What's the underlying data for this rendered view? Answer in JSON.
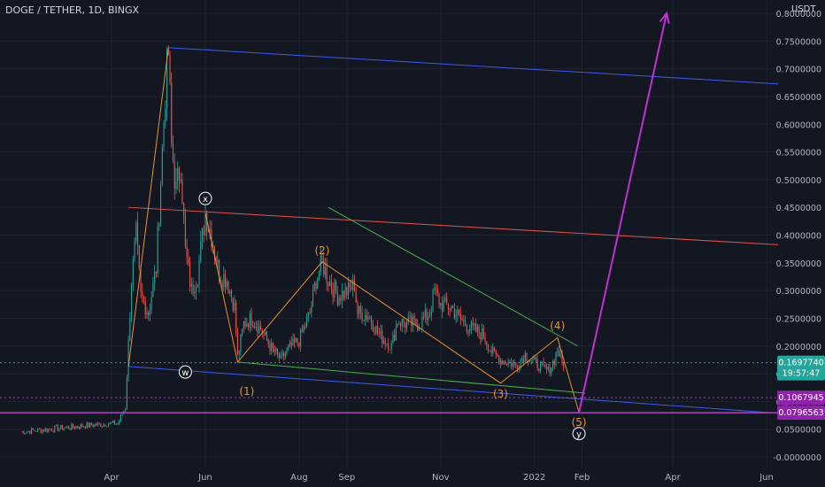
{
  "header": {
    "symbol_title": "DOGE / TETHER, 1D, BINGX",
    "currency": "USDT"
  },
  "chart_data": {
    "type": "candlestick",
    "title": "DOGE / TETHER, 1D, BINGX",
    "y_unit": "USDT",
    "ylim": [
      -0.02,
      0.82
    ],
    "grid": true,
    "y_ticks": [
      "-0.0000000",
      "0.0500000",
      "0.1000000",
      "0.1500000",
      "0.2000000",
      "0.2500000",
      "0.3000000",
      "0.3500000",
      "0.4000000",
      "0.4500000",
      "0.5000000",
      "0.5500000",
      "0.6000000",
      "0.6500000",
      "0.7000000",
      "0.7500000",
      "0.8000000"
    ],
    "y_tick_values": [
      0.0,
      0.05,
      0.1,
      0.15,
      0.2,
      0.25,
      0.3,
      0.35,
      0.4,
      0.45,
      0.5,
      0.55,
      0.6,
      0.65,
      0.7,
      0.75,
      0.8
    ],
    "x_ticks": [
      "Apr",
      "Jun",
      "Aug",
      "Sep",
      "Nov",
      "2022",
      "Feb",
      "Apr",
      "Jun"
    ],
    "x_tick_dates": [
      "2021-04-01",
      "2021-06-01",
      "2021-08-01",
      "2021-09-01",
      "2021-11-01",
      "2022-01-01",
      "2022-02-01",
      "2022-04-01",
      "2022-06-01"
    ],
    "price_path": [
      [
        "2021-02-01",
        0.045
      ],
      [
        "2021-02-20",
        0.05
      ],
      [
        "2021-03-10",
        0.055
      ],
      [
        "2021-03-31",
        0.06
      ],
      [
        "2021-04-05",
        0.06
      ],
      [
        "2021-04-10",
        0.09
      ],
      [
        "2021-04-14",
        0.32
      ],
      [
        "2021-04-17",
        0.4
      ],
      [
        "2021-04-20",
        0.29
      ],
      [
        "2021-04-25",
        0.26
      ],
      [
        "2021-04-30",
        0.34
      ],
      [
        "2021-05-03",
        0.5
      ],
      [
        "2021-05-06",
        0.66
      ],
      [
        "2021-05-08",
        0.73
      ],
      [
        "2021-05-10",
        0.56
      ],
      [
        "2021-05-13",
        0.48
      ],
      [
        "2021-05-16",
        0.53
      ],
      [
        "2021-05-19",
        0.37
      ],
      [
        "2021-05-23",
        0.3
      ],
      [
        "2021-05-27",
        0.33
      ],
      [
        "2021-06-01",
        0.44
      ],
      [
        "2021-06-05",
        0.4
      ],
      [
        "2021-06-10",
        0.33
      ],
      [
        "2021-06-15",
        0.32
      ],
      [
        "2021-06-20",
        0.27
      ],
      [
        "2021-06-22",
        0.18
      ],
      [
        "2021-06-26",
        0.24
      ],
      [
        "2021-07-01",
        0.25
      ],
      [
        "2021-07-07",
        0.23
      ],
      [
        "2021-07-13",
        0.2
      ],
      [
        "2021-07-20",
        0.175
      ],
      [
        "2021-07-25",
        0.195
      ],
      [
        "2021-08-01",
        0.21
      ],
      [
        "2021-08-08",
        0.26
      ],
      [
        "2021-08-12",
        0.32
      ],
      [
        "2021-08-16",
        0.35
      ],
      [
        "2021-08-20",
        0.32
      ],
      [
        "2021-08-26",
        0.29
      ],
      [
        "2021-09-02",
        0.3
      ],
      [
        "2021-09-06",
        0.31
      ],
      [
        "2021-09-08",
        0.26
      ],
      [
        "2021-09-15",
        0.255
      ],
      [
        "2021-09-22",
        0.22
      ],
      [
        "2021-09-30",
        0.2
      ],
      [
        "2021-10-04",
        0.245
      ],
      [
        "2021-10-10",
        0.24
      ],
      [
        "2021-10-18",
        0.24
      ],
      [
        "2021-10-25",
        0.26
      ],
      [
        "2021-10-28",
        0.3
      ],
      [
        "2021-11-01",
        0.275
      ],
      [
        "2021-11-08",
        0.27
      ],
      [
        "2021-11-15",
        0.245
      ],
      [
        "2021-11-22",
        0.23
      ],
      [
        "2021-11-29",
        0.22
      ],
      [
        "2021-12-04",
        0.19
      ],
      [
        "2021-12-10",
        0.175
      ],
      [
        "2021-12-20",
        0.165
      ],
      [
        "2021-12-26",
        0.185
      ],
      [
        "2022-01-01",
        0.17
      ],
      [
        "2022-01-10",
        0.155
      ],
      [
        "2022-01-14",
        0.175
      ],
      [
        "2022-01-16",
        0.195
      ],
      [
        "2022-01-20",
        0.16
      ]
    ],
    "overlays": {
      "lines": [
        {
          "name": "upper-blue-channel",
          "color": "#3d5ce8",
          "from": [
            "2021-05-08",
            0.738
          ],
          "to": [
            "2022-06-12",
            0.672
          ]
        },
        {
          "name": "lower-blue-channel",
          "color": "#3d5ce8",
          "from": [
            "2021-04-12",
            0.163
          ],
          "to": [
            "2022-06-12",
            0.078
          ]
        },
        {
          "name": "red-resistance",
          "color": "#e0544c",
          "from": [
            "2021-04-12",
            0.45
          ],
          "to": [
            "2022-06-12",
            0.382
          ]
        },
        {
          "name": "green-upper-trendline",
          "color": "#4caf50",
          "from": [
            "2021-08-20",
            0.45
          ],
          "to": [
            "2022-01-29",
            0.2
          ]
        },
        {
          "name": "green-lower-trendline",
          "color": "#4caf50",
          "from": [
            "2021-06-22",
            0.171
          ],
          "to": [
            "2022-02-03",
            0.115
          ]
        },
        {
          "name": "orange-vertical-wave",
          "color": "#e8912d",
          "from": [
            "2021-04-12",
            0.163
          ],
          "to": [
            "2021-05-08",
            0.738
          ]
        }
      ],
      "elliott_waves": {
        "color": "#e8912d",
        "points": [
          [
            "2021-06-01",
            0.44
          ],
          [
            "2021-06-22",
            0.171
          ],
          [
            "2021-08-16",
            0.352
          ],
          [
            "2021-12-10",
            0.133
          ],
          [
            "2022-01-16",
            0.215
          ],
          [
            "2022-01-30",
            0.08
          ]
        ]
      },
      "projection": {
        "color": "#c12fd6",
        "from": [
          "2022-01-30",
          0.08
        ],
        "to": [
          "2022-03-28",
          0.8
        ]
      },
      "horizontals": [
        {
          "name": "support-dotted",
          "color": "#ab47bc",
          "value": 0.1067945,
          "style": "dotted"
        },
        {
          "name": "support-solid",
          "color": "#ab47bc",
          "value": 0.0796563,
          "style": "solid"
        },
        {
          "name": "last-price",
          "color": "#26a69a",
          "value": 0.169774,
          "style": "dotted"
        }
      ],
      "labels": [
        {
          "text": "(1)",
          "color": "#e8912d",
          "at": [
            "2021-06-28",
            0.118
          ]
        },
        {
          "text": "(2)",
          "color": "#e8912d",
          "at": [
            "2021-08-16",
            0.372
          ]
        },
        {
          "text": "(3)",
          "color": "#e8912d",
          "at": [
            "2021-12-10",
            0.113
          ]
        },
        {
          "text": "(4)",
          "color": "#e8912d",
          "at": [
            "2022-01-16",
            0.236
          ]
        },
        {
          "text": "(5)",
          "color": "#e8912d",
          "at": [
            "2022-01-30",
            0.062
          ]
        },
        {
          "text": "x",
          "color": "#ffffff",
          "circle": true,
          "at": [
            "2021-06-01",
            0.466
          ]
        },
        {
          "text": "w",
          "color": "#ffffff",
          "circle": true,
          "at": [
            "2021-05-19",
            0.153
          ]
        },
        {
          "text": "y",
          "color": "#ffffff",
          "circle": true,
          "at": [
            "2022-01-30",
            0.042
          ]
        }
      ]
    },
    "price_tags": [
      {
        "name": "last-price-tag",
        "lines": [
          "0.1697740",
          "19:57:47"
        ],
        "value": 0.169774,
        "color": "#26a69a"
      },
      {
        "name": "support-dotted-tag",
        "lines": [
          "0.1067945"
        ],
        "value": 0.1067945,
        "color": "#8e24aa"
      },
      {
        "name": "support-solid-tag",
        "lines": [
          "0.0796563"
        ],
        "value": 0.0796563,
        "color": "#8e24aa"
      }
    ]
  }
}
